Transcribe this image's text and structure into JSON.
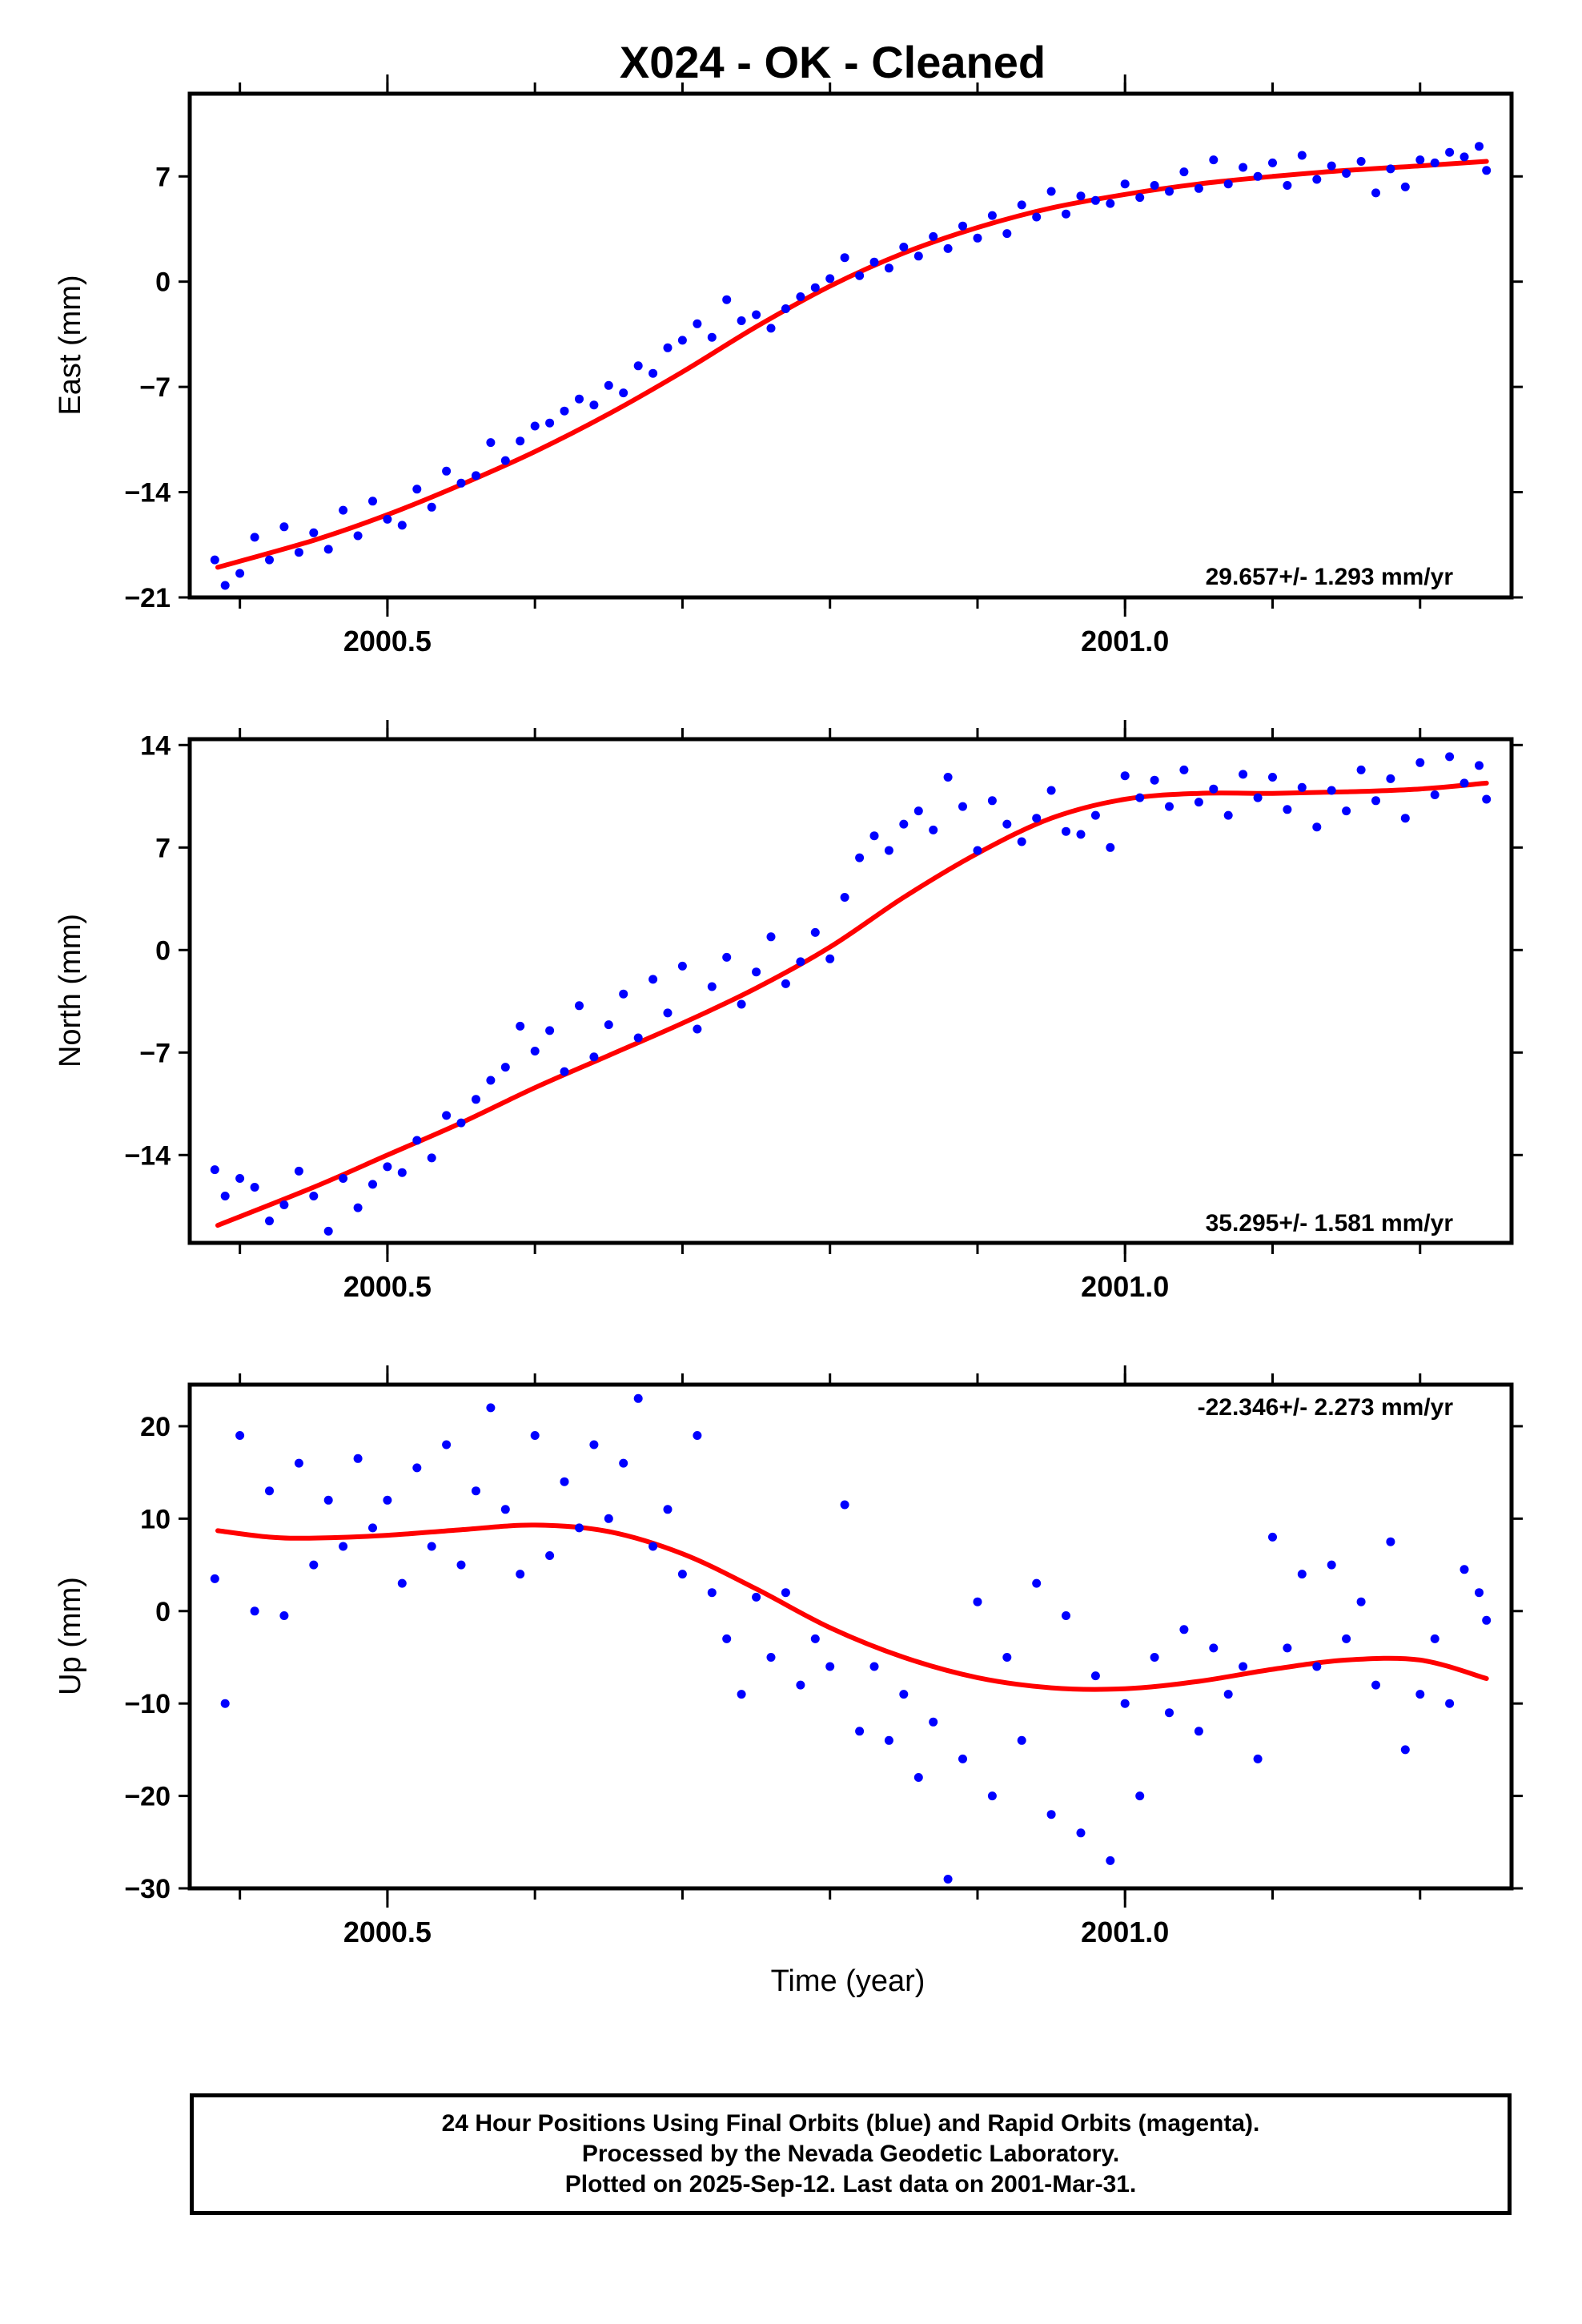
{
  "title": "X024  - OK - Cleaned",
  "x_axis_label": "Time (year)",
  "footer": [
    "24 Hour Positions Using Final Orbits (blue) and Rapid Orbits (magenta).",
    "Processed by the Nevada Geodetic Laboratory.",
    "Plotted on 2025-Sep-12. Last data on 2001-Mar-31."
  ],
  "colors": {
    "points": "#0000ff",
    "fit": "#ff0000",
    "frame": "#000000"
  },
  "chart_data": [
    {
      "type": "scatter",
      "ylabel": "East (mm)",
      "ylim": [
        -21,
        12.5
      ],
      "yticks": [
        -21,
        -14,
        -7,
        0,
        7
      ],
      "xlim": [
        2000.366,
        2001.262
      ],
      "xticks": [
        2000.5,
        2001.0
      ],
      "xtick_labels": [
        "2000.5",
        "2001.0"
      ],
      "rate": "29.657+/- 1.293 mm/yr",
      "rate_position": "bottom-right",
      "fit": {
        "x": [
          2000.385,
          2000.45,
          2000.5,
          2000.55,
          2000.6,
          2000.65,
          2000.7,
          2000.75,
          2000.8,
          2000.85,
          2000.9,
          2000.95,
          2001.0,
          2001.05,
          2001.1,
          2001.15,
          2001.2,
          2001.245
        ],
        "y": [
          -19.0,
          -17.2,
          -15.5,
          -13.5,
          -11.3,
          -8.8,
          -6.0,
          -3.0,
          -0.3,
          1.9,
          3.6,
          4.9,
          5.8,
          6.5,
          7.0,
          7.4,
          7.7,
          8.0
        ]
      },
      "points": {
        "x": [
          2000.383,
          2000.39,
          2000.4,
          2000.41,
          2000.42,
          2000.43,
          2000.44,
          2000.45,
          2000.46,
          2000.47,
          2000.48,
          2000.49,
          2000.5,
          2000.51,
          2000.52,
          2000.53,
          2000.54,
          2000.55,
          2000.56,
          2000.57,
          2000.58,
          2000.59,
          2000.6,
          2000.61,
          2000.62,
          2000.63,
          2000.64,
          2000.65,
          2000.66,
          2000.67,
          2000.68,
          2000.69,
          2000.7,
          2000.71,
          2000.72,
          2000.73,
          2000.74,
          2000.75,
          2000.76,
          2000.77,
          2000.78,
          2000.79,
          2000.8,
          2000.81,
          2000.82,
          2000.83,
          2000.84,
          2000.85,
          2000.86,
          2000.87,
          2000.88,
          2000.89,
          2000.9,
          2000.91,
          2000.92,
          2000.93,
          2000.94,
          2000.95,
          2000.96,
          2000.97,
          2000.98,
          2000.99,
          2001.0,
          2001.01,
          2001.02,
          2001.03,
          2001.04,
          2001.05,
          2001.06,
          2001.07,
          2001.08,
          2001.09,
          2001.1,
          2001.11,
          2001.12,
          2001.13,
          2001.14,
          2001.15,
          2001.16,
          2001.17,
          2001.18,
          2001.19,
          2001.2,
          2001.21,
          2001.22,
          2001.23,
          2001.24,
          2001.245
        ],
        "y": [
          -18.5,
          -20.2,
          -19.4,
          -17.0,
          -18.5,
          -16.3,
          -18.0,
          -16.7,
          -17.8,
          -15.2,
          -16.9,
          -14.6,
          -15.8,
          -16.2,
          -13.8,
          -15.0,
          -12.6,
          -13.4,
          -12.9,
          -10.7,
          -11.9,
          -10.6,
          -9.6,
          -9.4,
          -8.6,
          -7.8,
          -8.2,
          -6.9,
          -7.4,
          -5.6,
          -6.1,
          -4.4,
          -3.9,
          -2.8,
          -3.7,
          -1.2,
          -2.6,
          -2.2,
          -3.1,
          -1.8,
          -1.0,
          -0.4,
          0.2,
          1.6,
          0.4,
          1.3,
          0.9,
          2.3,
          1.7,
          3.0,
          2.2,
          3.7,
          2.9,
          4.4,
          3.2,
          5.1,
          4.3,
          6.0,
          4.5,
          5.7,
          5.4,
          5.2,
          6.5,
          5.6,
          6.4,
          6.0,
          7.3,
          6.2,
          8.1,
          6.5,
          7.6,
          7.0,
          7.9,
          6.4,
          8.4,
          6.8,
          7.7,
          7.2,
          8.0,
          5.9,
          7.5,
          6.3,
          8.1,
          7.9,
          8.6,
          8.3,
          9.0,
          7.4
        ]
      }
    },
    {
      "type": "scatter",
      "ylabel": "North (mm)",
      "ylim": [
        -20,
        14.4
      ],
      "yticks": [
        -14,
        -7,
        0,
        7,
        14
      ],
      "xlim": [
        2000.366,
        2001.262
      ],
      "xticks": [
        2000.5,
        2001.0
      ],
      "xtick_labels": [
        "2000.5",
        "2001.0"
      ],
      "rate": "35.295+/- 1.581 mm/yr",
      "rate_position": "bottom-right",
      "fit": {
        "x": [
          2000.385,
          2000.45,
          2000.5,
          2000.55,
          2000.6,
          2000.65,
          2000.7,
          2000.75,
          2000.8,
          2000.85,
          2000.9,
          2000.95,
          2001.0,
          2001.05,
          2001.1,
          2001.15,
          2001.2,
          2001.245
        ],
        "y": [
          -18.8,
          -16.2,
          -14.0,
          -11.8,
          -9.4,
          -7.2,
          -5.0,
          -2.6,
          0.2,
          3.6,
          6.6,
          9.0,
          10.3,
          10.7,
          10.7,
          10.8,
          11.0,
          11.4
        ]
      },
      "points": {
        "x": [
          2000.383,
          2000.39,
          2000.4,
          2000.41,
          2000.42,
          2000.43,
          2000.44,
          2000.45,
          2000.46,
          2000.47,
          2000.48,
          2000.49,
          2000.5,
          2000.51,
          2000.52,
          2000.53,
          2000.54,
          2000.55,
          2000.56,
          2000.57,
          2000.58,
          2000.59,
          2000.6,
          2000.61,
          2000.62,
          2000.63,
          2000.64,
          2000.65,
          2000.66,
          2000.67,
          2000.68,
          2000.69,
          2000.7,
          2000.71,
          2000.72,
          2000.73,
          2000.74,
          2000.75,
          2000.76,
          2000.77,
          2000.78,
          2000.79,
          2000.8,
          2000.81,
          2000.82,
          2000.83,
          2000.84,
          2000.85,
          2000.86,
          2000.87,
          2000.88,
          2000.89,
          2000.9,
          2000.91,
          2000.92,
          2000.93,
          2000.94,
          2000.95,
          2000.96,
          2000.97,
          2000.98,
          2000.99,
          2001.0,
          2001.01,
          2001.02,
          2001.03,
          2001.04,
          2001.05,
          2001.06,
          2001.07,
          2001.08,
          2001.09,
          2001.1,
          2001.11,
          2001.12,
          2001.13,
          2001.14,
          2001.15,
          2001.16,
          2001.17,
          2001.18,
          2001.19,
          2001.2,
          2001.21,
          2001.22,
          2001.23,
          2001.24,
          2001.245
        ],
        "y": [
          -15.0,
          -16.8,
          -15.6,
          -16.2,
          -18.5,
          -17.4,
          -15.1,
          -16.8,
          -19.2,
          -15.6,
          -17.6,
          -16.0,
          -14.8,
          -15.2,
          -13.0,
          -14.2,
          -11.3,
          -11.8,
          -10.2,
          -8.9,
          -8.0,
          -5.2,
          -6.9,
          -5.5,
          -8.3,
          -3.8,
          -7.3,
          -5.1,
          -3.0,
          -6.0,
          -2.0,
          -4.3,
          -1.1,
          -5.4,
          -2.5,
          -0.5,
          -3.7,
          -1.5,
          0.9,
          -2.3,
          -0.8,
          1.2,
          -0.6,
          3.6,
          6.3,
          7.8,
          6.8,
          8.6,
          9.5,
          8.2,
          11.8,
          9.8,
          6.8,
          10.2,
          8.6,
          7.4,
          9.0,
          10.9,
          8.1,
          7.9,
          9.2,
          7.0,
          11.9,
          10.4,
          11.6,
          9.8,
          12.3,
          10.1,
          11.0,
          9.2,
          12.0,
          10.4,
          11.8,
          9.6,
          11.1,
          8.4,
          10.9,
          9.5,
          12.3,
          10.2,
          11.7,
          9.0,
          12.8,
          10.6,
          13.2,
          11.4,
          12.6,
          10.3
        ]
      }
    },
    {
      "type": "scatter",
      "ylabel": "Up (mm)",
      "ylim": [
        -30,
        24.5
      ],
      "yticks": [
        -30,
        -20,
        -10,
        0,
        10,
        20
      ],
      "xlim": [
        2000.366,
        2001.262
      ],
      "xticks": [
        2000.5,
        2001.0
      ],
      "xtick_labels": [
        "2000.5",
        "2001.0"
      ],
      "xlabel": "Time (year)",
      "rate": "-22.346+/- 2.273 mm/yr",
      "rate_position": "top-right",
      "fit": {
        "x": [
          2000.385,
          2000.42,
          2000.45,
          2000.5,
          2000.55,
          2000.6,
          2000.65,
          2000.7,
          2000.75,
          2000.8,
          2000.85,
          2000.9,
          2000.95,
          2001.0,
          2001.05,
          2001.1,
          2001.15,
          2001.2,
          2001.245
        ],
        "y": [
          8.7,
          8.0,
          7.9,
          8.2,
          8.8,
          9.3,
          8.6,
          6.2,
          2.4,
          -1.8,
          -5.0,
          -7.2,
          -8.3,
          -8.4,
          -7.6,
          -6.3,
          -5.3,
          -5.3,
          -7.3
        ]
      },
      "points": {
        "x": [
          2000.383,
          2000.39,
          2000.4,
          2000.41,
          2000.42,
          2000.43,
          2000.44,
          2000.45,
          2000.46,
          2000.47,
          2000.48,
          2000.49,
          2000.5,
          2000.51,
          2000.52,
          2000.53,
          2000.54,
          2000.55,
          2000.56,
          2000.57,
          2000.58,
          2000.59,
          2000.6,
          2000.61,
          2000.62,
          2000.63,
          2000.64,
          2000.65,
          2000.66,
          2000.67,
          2000.68,
          2000.69,
          2000.7,
          2000.71,
          2000.72,
          2000.73,
          2000.74,
          2000.75,
          2000.76,
          2000.77,
          2000.78,
          2000.79,
          2000.8,
          2000.81,
          2000.82,
          2000.83,
          2000.84,
          2000.85,
          2000.86,
          2000.87,
          2000.88,
          2000.89,
          2000.9,
          2000.91,
          2000.92,
          2000.93,
          2000.94,
          2000.95,
          2000.96,
          2000.97,
          2000.98,
          2000.99,
          2001.0,
          2001.01,
          2001.02,
          2001.03,
          2001.04,
          2001.05,
          2001.06,
          2001.07,
          2001.08,
          2001.09,
          2001.1,
          2001.11,
          2001.12,
          2001.13,
          2001.14,
          2001.15,
          2001.16,
          2001.17,
          2001.18,
          2001.19,
          2001.2,
          2001.21,
          2001.22,
          2001.23,
          2001.24,
          2001.245
        ],
        "y": [
          3.5,
          -10.0,
          19.0,
          0.0,
          13.0,
          -0.5,
          16.0,
          5.0,
          12.0,
          7.0,
          16.5,
          9.0,
          12.0,
          3.0,
          15.5,
          7.0,
          18.0,
          5.0,
          13.0,
          22.0,
          11.0,
          4.0,
          19.0,
          6.0,
          14.0,
          9.0,
          18.0,
          10.0,
          16.0,
          23.0,
          7.0,
          11.0,
          4.0,
          19.0,
          2.0,
          -3.0,
          -9.0,
          1.5,
          -5.0,
          2.0,
          -8.0,
          -3.0,
          -6.0,
          11.5,
          -13.0,
          -6.0,
          -14.0,
          -9.0,
          -18.0,
          -12.0,
          -29.0,
          -16.0,
          1.0,
          -20.0,
          -5.0,
          -14.0,
          3.0,
          -22.0,
          -0.5,
          -24.0,
          -7.0,
          -27.0,
          -10.0,
          -20.0,
          -5.0,
          -11.0,
          -2.0,
          -13.0,
          -4.0,
          -9.0,
          -6.0,
          -16.0,
          8.0,
          -4.0,
          4.0,
          -6.0,
          5.0,
          -3.0,
          1.0,
          -8.0,
          7.5,
          -15.0,
          -9.0,
          -3.0,
          -10.0,
          4.5,
          2.0,
          -1.0
        ]
      }
    }
  ]
}
